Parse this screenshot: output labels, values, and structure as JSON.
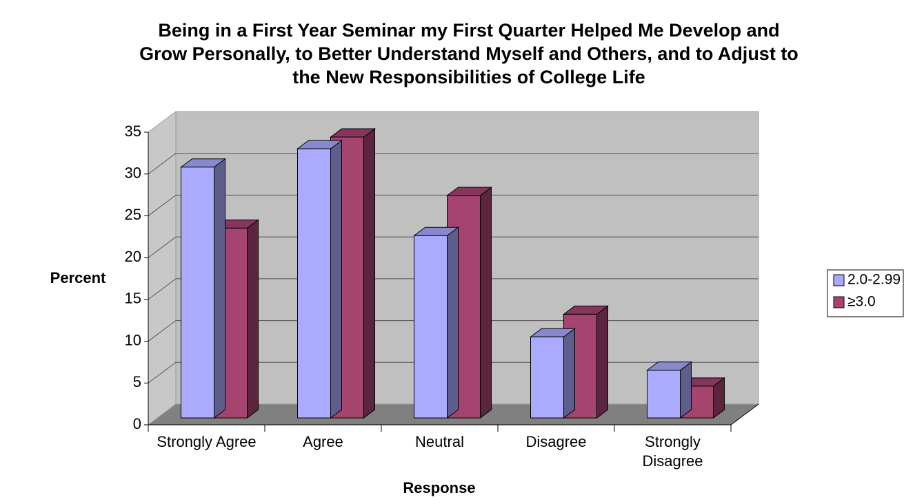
{
  "chart_data": {
    "type": "bar3d",
    "title": [
      "Being in a First Year Seminar my First Quarter Helped Me Develop and",
      "Grow Personally, to Better Understand Myself and Others, and to Adjust to",
      "the New Responsibilities of College Life"
    ],
    "x_label": "Response",
    "y_label": "Percent",
    "categories": [
      "Strongly Agree",
      "Agree",
      "Neutral",
      "Disagree",
      "Strongly Disagree"
    ],
    "series": [
      {
        "name": "2.0-2.99",
        "color": "#aaaaff",
        "values": [
          30,
          32.2,
          21.8,
          9.7,
          5.7
        ]
      },
      {
        "name": "≥3.0",
        "color": "#a64470",
        "values": [
          22.7,
          33.6,
          26.6,
          12.4,
          3.8
        ]
      }
    ],
    "ylim": [
      0,
      35
    ],
    "yticks": [
      0,
      5,
      10,
      15,
      20,
      25,
      30,
      35
    ],
    "grid": true,
    "legend": "right"
  }
}
